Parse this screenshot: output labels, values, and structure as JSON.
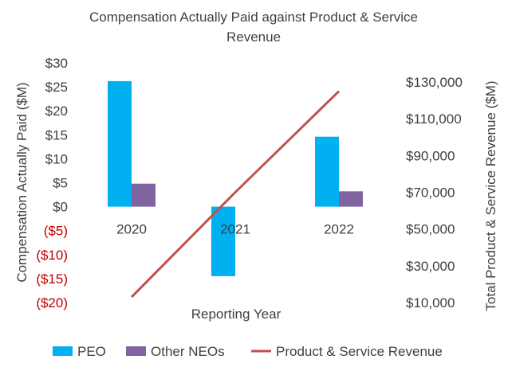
{
  "chart_data": {
    "type": "bar",
    "title_lines": [
      "Compensation Actually Paid against Product & Service",
      "Revenue"
    ],
    "xlabel": "Reporting Year",
    "ylabel": "Compensation Actually Paid ($M)",
    "y2label": "Total Product & Service Revenue ($M)",
    "categories": [
      "2020",
      "2021",
      "2022"
    ],
    "ylim": [
      -20,
      30
    ],
    "yticks": [
      30,
      25,
      20,
      15,
      10,
      5,
      0,
      -5,
      -10,
      -15,
      -20
    ],
    "ytick_labels": [
      "$30",
      "$25",
      "$20",
      "$15",
      "$10",
      "$5",
      "$0",
      "($5)",
      "($10)",
      "($15)",
      "($20)"
    ],
    "y2lim": [
      10000,
      130000
    ],
    "y2ticks": [
      130000,
      110000,
      90000,
      70000,
      50000,
      30000,
      10000
    ],
    "y2tick_labels": [
      "$130,000",
      "$110,000",
      "$90,000",
      "$70,000",
      "$50,000",
      "$30,000",
      "$10,000"
    ],
    "series": [
      {
        "name": "PEO",
        "type": "bar",
        "axis": "left",
        "color": "#00b0f0",
        "values": [
          26.2,
          -14.5,
          14.6
        ]
      },
      {
        "name": "Other NEOs",
        "type": "bar",
        "axis": "left",
        "color": "#8064a2",
        "values": [
          4.8,
          null,
          3.2
        ]
      },
      {
        "name": "Product & Service Revenue",
        "type": "line",
        "axis": "right",
        "color": "#c0504d",
        "values": [
          13000,
          70000,
          125000
        ]
      }
    ],
    "negative_tick_color": "#c00000",
    "legend_position": "bottom"
  }
}
